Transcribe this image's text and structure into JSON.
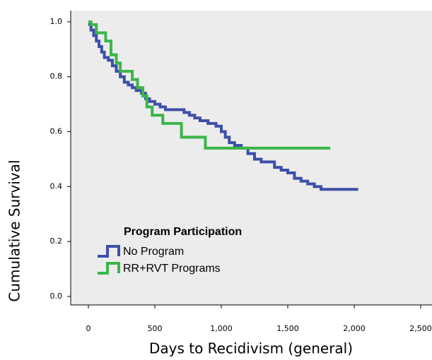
{
  "chart_data": {
    "type": "step",
    "x_label": "Days to Recidivism (general)",
    "y_label": "Cumulative Survival",
    "legend_title": "Program Participation",
    "legend_position": "lower left",
    "xlim": [
      -133,
      2585
    ],
    "ylim": [
      -0.031,
      1.041
    ],
    "xticks": [
      0,
      500,
      {
        "value": 1000,
        "label": "1,000"
      },
      {
        "value": 1500,
        "label": "1,500"
      },
      {
        "value": 2000,
        "label": "2,000"
      },
      {
        "value": 2500,
        "label": "2,500"
      }
    ],
    "yticks": [
      {
        "value": 0,
        "label": "0.0"
      },
      0.2,
      0.4,
      0.6,
      0.8,
      {
        "value": 1,
        "label": "1.0"
      }
    ],
    "series": [
      {
        "name": "No Program",
        "color": "#3d4fa8",
        "x": [
          0,
          20,
          40,
          60,
          80,
          100,
          120,
          150,
          180,
          210,
          240,
          270,
          300,
          330,
          360,
          400,
          430,
          460,
          500,
          540,
          580,
          720,
          760,
          800,
          840,
          900,
          960,
          1000,
          1030,
          1060,
          1100,
          1150,
          1200,
          1250,
          1300,
          1400,
          1450,
          1500,
          1550,
          1600,
          1650,
          1700,
          1750,
          2030
        ],
        "values": [
          0.99,
          0.97,
          0.95,
          0.93,
          0.91,
          0.89,
          0.87,
          0.86,
          0.84,
          0.82,
          0.8,
          0.78,
          0.77,
          0.76,
          0.75,
          0.74,
          0.72,
          0.71,
          0.7,
          0.69,
          0.68,
          0.67,
          0.66,
          0.65,
          0.64,
          0.63,
          0.62,
          0.6,
          0.58,
          0.56,
          0.55,
          0.54,
          0.52,
          0.5,
          0.49,
          0.47,
          0.46,
          0.45,
          0.43,
          0.42,
          0.41,
          0.4,
          0.39,
          0.39
        ]
      },
      {
        "name": "RR+RVT Programs",
        "color": "#3cb54a",
        "x": [
          0,
          20,
          60,
          130,
          170,
          210,
          240,
          330,
          370,
          410,
          440,
          480,
          560,
          700,
          880,
          1820
        ],
        "values": [
          1.0,
          0.99,
          0.96,
          0.93,
          0.88,
          0.85,
          0.82,
          0.79,
          0.76,
          0.73,
          0.69,
          0.66,
          0.63,
          0.58,
          0.54,
          0.54
        ]
      }
    ]
  }
}
